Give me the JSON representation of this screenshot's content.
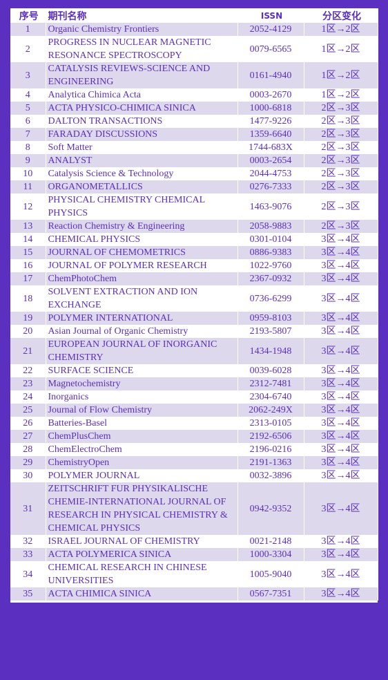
{
  "header": {
    "no": "序号",
    "name": "期刊名称",
    "issn": "ISSN",
    "change": "分区变化"
  },
  "rows": [
    {
      "no": "1",
      "name": "Organic Chemistry Frontiers",
      "issn": "2052-4129",
      "change": "1区→2区"
    },
    {
      "no": "2",
      "name": "PROGRESS IN NUCLEAR MAGNETIC RESONANCE SPECTROSCOPY",
      "issn": "0079-6565",
      "change": "1区→2区"
    },
    {
      "no": "3",
      "name": "CATALYSIS REVIEWS-SCIENCE AND ENGINEERING",
      "issn": "0161-4940",
      "change": "1区→2区"
    },
    {
      "no": "4",
      "name": "Analytica Chimica Acta",
      "issn": "0003-2670",
      "change": "1区→2区"
    },
    {
      "no": "5",
      "name": "ACTA PHYSICO-CHIMICA SINICA",
      "issn": "1000-6818",
      "change": "2区→3区"
    },
    {
      "no": "6",
      "name": "DALTON TRANSACTIONS",
      "issn": "1477-9226",
      "change": "2区→3区"
    },
    {
      "no": "7",
      "name": "FARADAY DISCUSSIONS",
      "issn": "1359-6640",
      "change": "2区→3区"
    },
    {
      "no": "8",
      "name": "Soft Matter",
      "issn": "1744-683X",
      "change": "2区→3区"
    },
    {
      "no": "9",
      "name": "ANALYST",
      "issn": "0003-2654",
      "change": "2区→3区"
    },
    {
      "no": "10",
      "name": "Catalysis Science & Technology",
      "issn": "2044-4753",
      "change": "2区→3区"
    },
    {
      "no": "11",
      "name": "ORGANOMETALLICS",
      "issn": "0276-7333",
      "change": "2区→3区"
    },
    {
      "no": "12",
      "name": "PHYSICAL CHEMISTRY CHEMICAL PHYSICS",
      "issn": "1463-9076",
      "change": "2区→3区"
    },
    {
      "no": "13",
      "name": "Reaction Chemistry & Engineering",
      "issn": "2058-9883",
      "change": "2区→3区"
    },
    {
      "no": "14",
      "name": "CHEMICAL PHYSICS",
      "issn": "0301-0104",
      "change": "3区→4区"
    },
    {
      "no": "15",
      "name": "JOURNAL OF CHEMOMETRICS",
      "issn": "0886-9383",
      "change": "3区→4区"
    },
    {
      "no": "16",
      "name": "JOURNAL OF POLYMER RESEARCH",
      "issn": "1022-9760",
      "change": "3区→4区"
    },
    {
      "no": "17",
      "name": "ChemPhotoChem",
      "issn": "2367-0932",
      "change": "3区→4区"
    },
    {
      "no": "18",
      "name": "SOLVENT EXTRACTION AND ION EXCHANGE",
      "issn": "0736-6299",
      "change": "3区→4区"
    },
    {
      "no": "19",
      "name": "POLYMER INTERNATIONAL",
      "issn": "0959-8103",
      "change": "3区→4区"
    },
    {
      "no": "20",
      "name": "Asian Journal of Organic Chemistry",
      "issn": "2193-5807",
      "change": "3区→4区"
    },
    {
      "no": "21",
      "name": "EUROPEAN JOURNAL OF INORGANIC CHEMISTRY",
      "issn": "1434-1948",
      "change": "3区→4区"
    },
    {
      "no": "22",
      "name": "SURFACE SCIENCE",
      "issn": "0039-6028",
      "change": "3区→4区"
    },
    {
      "no": "23",
      "name": "Magnetochemistry",
      "issn": "2312-7481",
      "change": "3区→4区"
    },
    {
      "no": "24",
      "name": "Inorganics",
      "issn": "2304-6740",
      "change": "3区→4区"
    },
    {
      "no": "25",
      "name": "Journal of Flow Chemistry",
      "issn": "2062-249X",
      "change": "3区→4区"
    },
    {
      "no": "26",
      "name": "Batteries-Basel",
      "issn": "2313-0105",
      "change": "3区→4区"
    },
    {
      "no": "27",
      "name": "ChemPlusChem",
      "issn": "2192-6506",
      "change": "3区→4区"
    },
    {
      "no": "28",
      "name": "ChemElectroChem",
      "issn": "2196-0216",
      "change": "3区→4区"
    },
    {
      "no": "29",
      "name": "ChemistryOpen",
      "issn": "2191-1363",
      "change": "3区→4区"
    },
    {
      "no": "30",
      "name": "POLYMER JOURNAL",
      "issn": "0032-3896",
      "change": "3区→4区"
    },
    {
      "no": "31",
      "name": "ZEITSCHRIFT FUR PHYSIKALISCHE CHEMIE-INTERNATIONAL JOURNAL OF RESEARCH IN PHYSICAL CHEMISTRY & CHEMICAL PHYSICS",
      "issn": "0942-9352",
      "change": "3区→4区"
    },
    {
      "no": "32",
      "name": "ISRAEL JOURNAL OF CHEMISTRY",
      "issn": "0021-2148",
      "change": "3区→4区"
    },
    {
      "no": "33",
      "name": "ACTA POLYMERICA SINICA",
      "issn": "1000-3304",
      "change": "3区→4区"
    },
    {
      "no": "34",
      "name": "CHEMICAL RESEARCH IN CHINESE UNIVERSITIES",
      "issn": "1005-9040",
      "change": "3区→4区"
    },
    {
      "no": "35",
      "name": "ACTA CHIMICA SINICA",
      "issn": "0567-7351",
      "change": "3区→4区"
    }
  ]
}
